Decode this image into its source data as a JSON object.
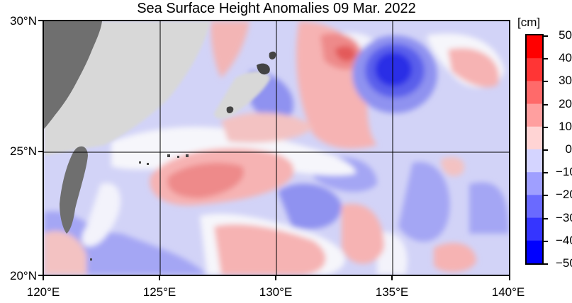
{
  "title": "Sea Surface Height Anomalies  09 Mar. 2022",
  "axes": {
    "lat_labels": [
      "30°N",
      "25°N",
      "20°N"
    ],
    "lon_labels": [
      "120°E",
      "125°E",
      "130°E",
      "135°E",
      "140°E"
    ]
  },
  "colorbar": {
    "unit": "[cm]",
    "ticks": [
      "50",
      "40",
      "30",
      "20",
      "10",
      "0",
      "−10",
      "−20",
      "−30",
      "−40",
      "−50"
    ],
    "colors": [
      "#ff0000",
      "#ff3535",
      "#ff6a6a",
      "#ff9f9f",
      "#ffd4d4",
      "#ffffff",
      "#d4d4ff",
      "#9f9fff",
      "#6a6aff",
      "#3535ff",
      "#0000ff"
    ]
  },
  "map_colors": {
    "land": "#6f6f6f",
    "shelf": "#d8d8d8",
    "ocean_base": "#d2d3f7",
    "grid": "#000000"
  }
}
